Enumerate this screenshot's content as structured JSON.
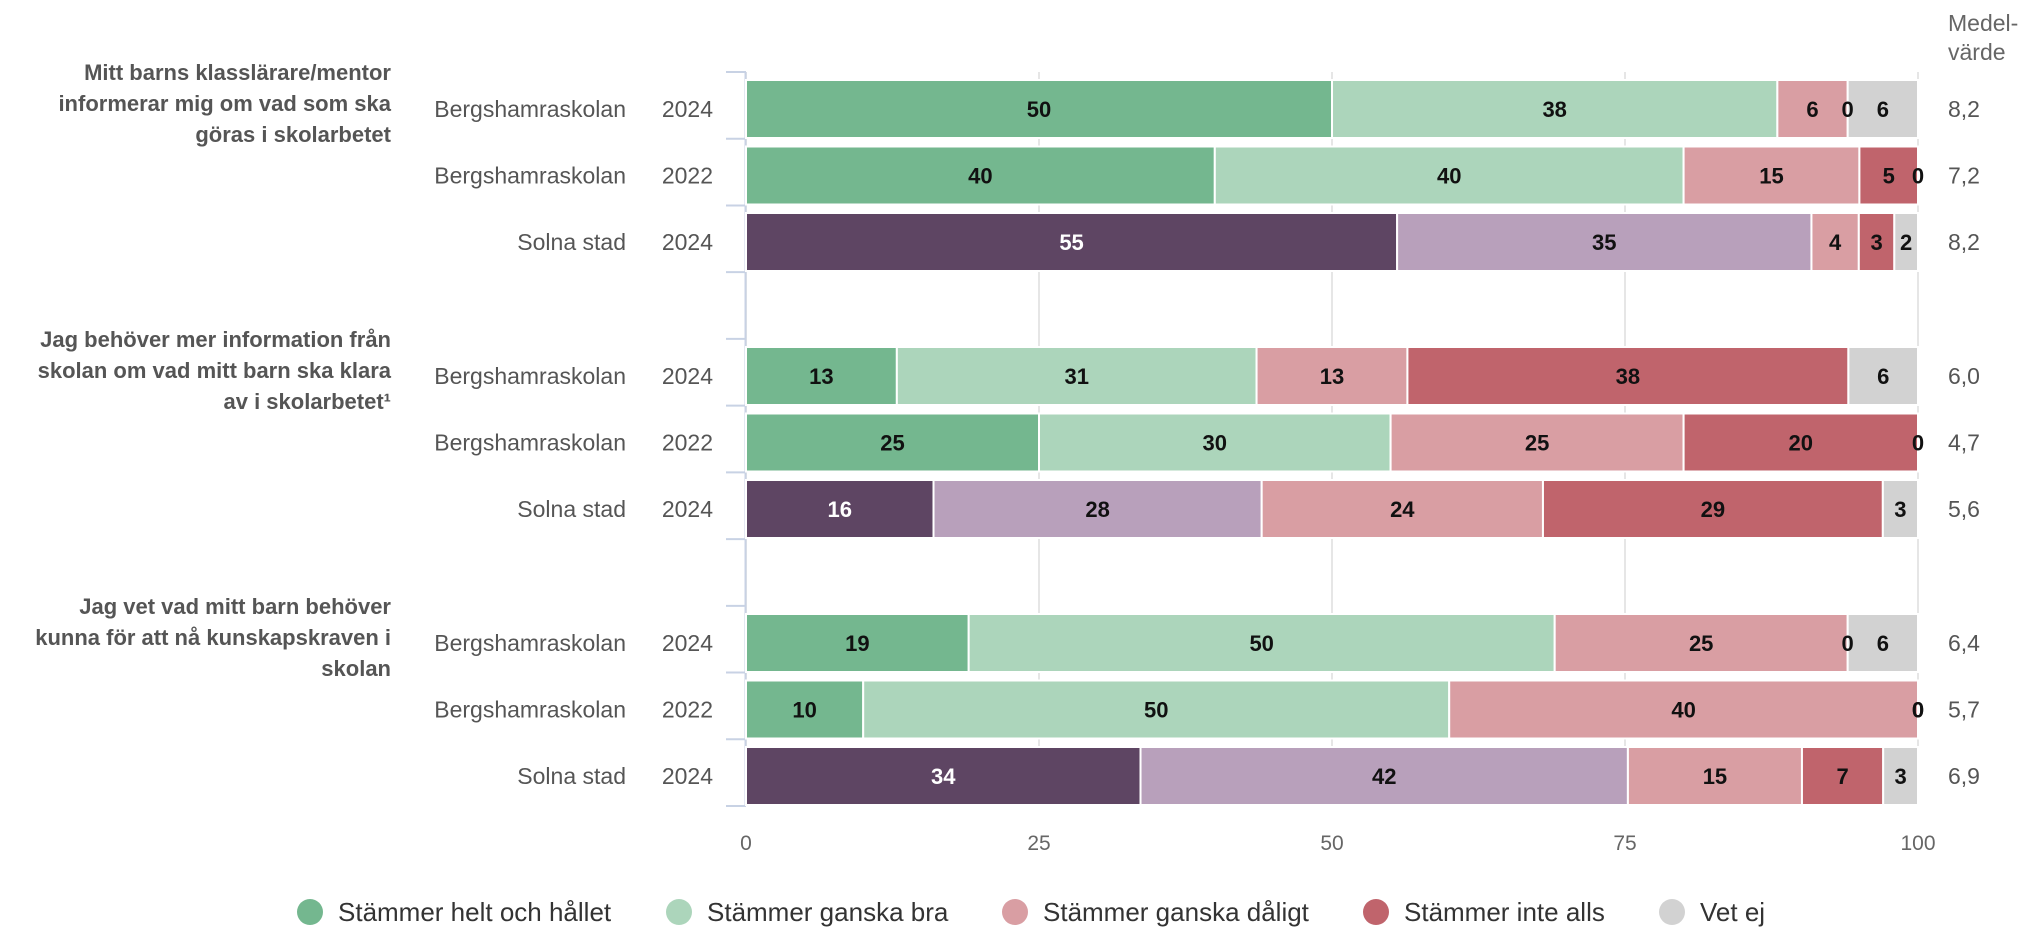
{
  "chart_data": {
    "type": "bar",
    "orientation": "horizontal",
    "stacked": true,
    "xlim": [
      0,
      100
    ],
    "x_ticks": [
      "0",
      "25",
      "50",
      "75",
      "100"
    ],
    "grid": true,
    "legend_position": "bottom",
    "mean_header": [
      "Medel-",
      "värde"
    ],
    "legend": [
      {
        "label": "Stämmer helt och hållet",
        "color": "#74b78f"
      },
      {
        "label": "Stämmer ganska bra",
        "color": "#acd5bb"
      },
      {
        "label": "Stämmer ganska dåligt",
        "color": "#d99ea3"
      },
      {
        "label": "Stämmer inte alls",
        "color": "#c0646c"
      },
      {
        "label": "Vet ej",
        "color": "#d2d2d2"
      }
    ],
    "solna_colors": [
      "#5e4563",
      "#b8a0bb",
      "#d99ea3",
      "#c0646c",
      "#d2d2d2"
    ],
    "groups": [
      {
        "question": [
          "Mitt barns klasslärare/mentor",
          "informerar mig om vad som ska",
          "göras i skolarbetet"
        ],
        "rows": [
          {
            "name": "Bergshamraskolan",
            "year": "2024",
            "palette": "school",
            "values": [
              50,
              38,
              6,
              0,
              6
            ],
            "mean": "8,2"
          },
          {
            "name": "Bergshamraskolan",
            "year": "2022",
            "palette": "school",
            "values": [
              40,
              40,
              15,
              5,
              0
            ],
            "mean": "7,2"
          },
          {
            "name": "Solna stad",
            "year": "2024",
            "palette": "solna",
            "values": [
              55,
              35,
              4,
              3,
              2
            ],
            "mean": "8,2"
          }
        ]
      },
      {
        "question": [
          "Jag behöver mer information från",
          "skolan om vad mitt barn ska klara",
          "av i skolarbetet¹"
        ],
        "rows": [
          {
            "name": "Bergshamraskolan",
            "year": "2024",
            "palette": "school",
            "values": [
              13,
              31,
              13,
              38,
              6
            ],
            "mean": "6,0"
          },
          {
            "name": "Bergshamraskolan",
            "year": "2022",
            "palette": "school",
            "values": [
              25,
              30,
              25,
              20,
              0
            ],
            "mean": "4,7"
          },
          {
            "name": "Solna stad",
            "year": "2024",
            "palette": "solna",
            "values": [
              16,
              28,
              24,
              29,
              3
            ],
            "mean": "5,6"
          }
        ]
      },
      {
        "question": [
          "Jag vet vad mitt barn behöver",
          "kunna för att nå kunskapskraven i",
          "skolan"
        ],
        "rows": [
          {
            "name": "Bergshamraskolan",
            "year": "2024",
            "palette": "school",
            "values": [
              19,
              50,
              25,
              0,
              6
            ],
            "mean": "6,4"
          },
          {
            "name": "Bergshamraskolan",
            "year": "2022",
            "palette": "school",
            "values": [
              10,
              50,
              40,
              0,
              0
            ],
            "mean": "5,7"
          },
          {
            "name": "Solna stad",
            "year": "2024",
            "palette": "solna",
            "values": [
              34,
              42,
              15,
              7,
              3
            ],
            "mean": "6,9"
          }
        ]
      }
    ]
  }
}
